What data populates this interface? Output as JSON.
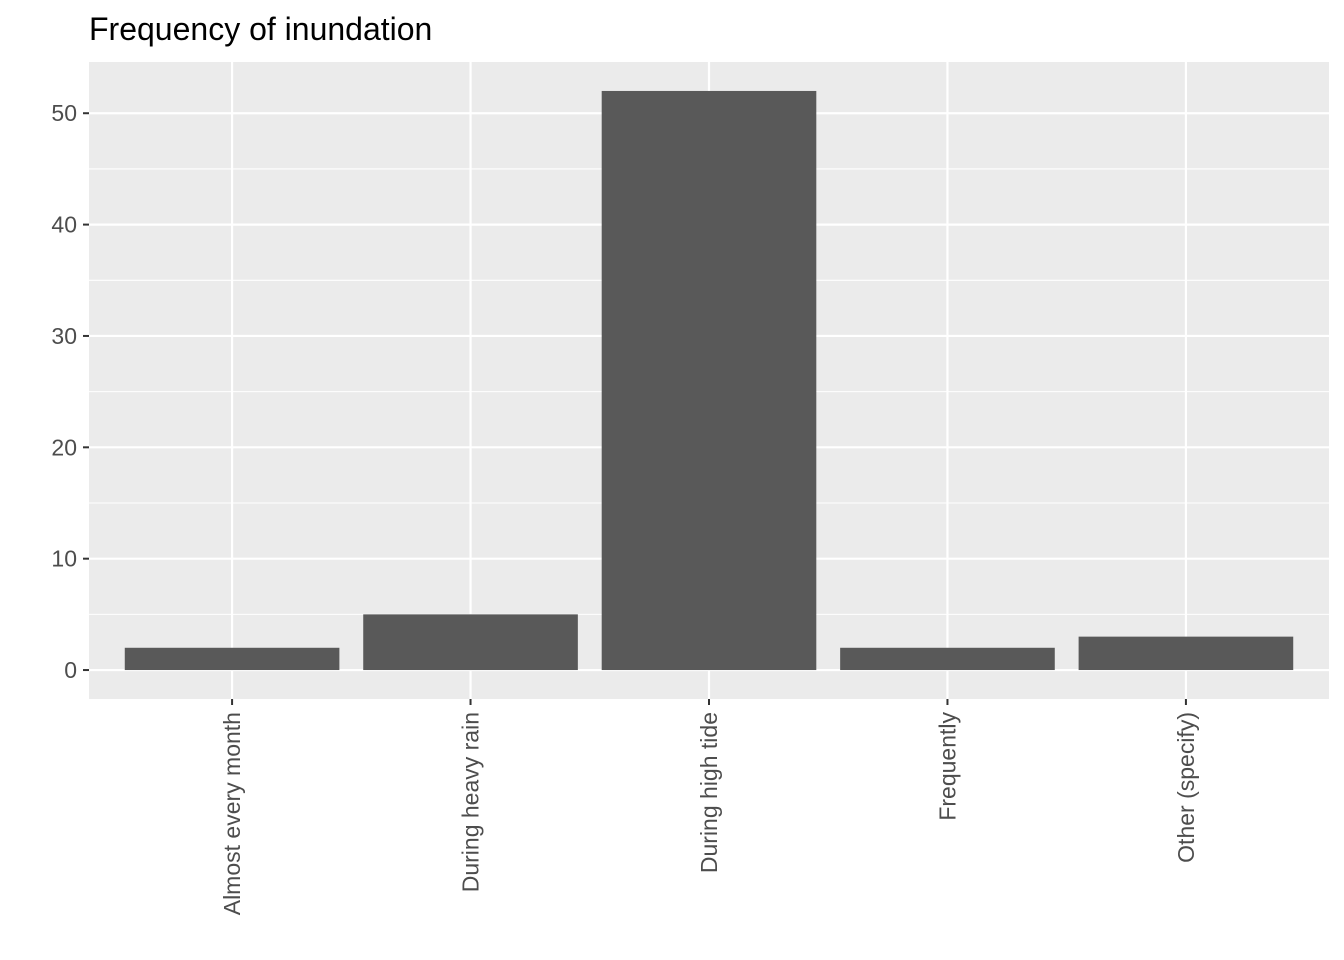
{
  "chart_data": {
    "type": "bar",
    "title": "Frequency of inundation",
    "xlabel": "",
    "ylabel": "",
    "categories": [
      "Almost every month",
      "During heavy rain",
      "During high tide",
      "Frequently",
      "Other (specify)"
    ],
    "values": [
      2,
      5,
      52,
      2,
      3
    ],
    "ylim": [
      -2.6,
      54.6
    ],
    "yticks": [
      0,
      10,
      20,
      30,
      40,
      50
    ],
    "ytick_labels": [
      "0",
      "10",
      "20",
      "30",
      "40",
      "50"
    ],
    "grid": true,
    "legend": "none",
    "colors": {
      "panel": "#ebebeb",
      "grid": "#ffffff",
      "bar": "#595959",
      "tick_text": "#4d4d4d",
      "tick_mark": "#333333"
    }
  }
}
